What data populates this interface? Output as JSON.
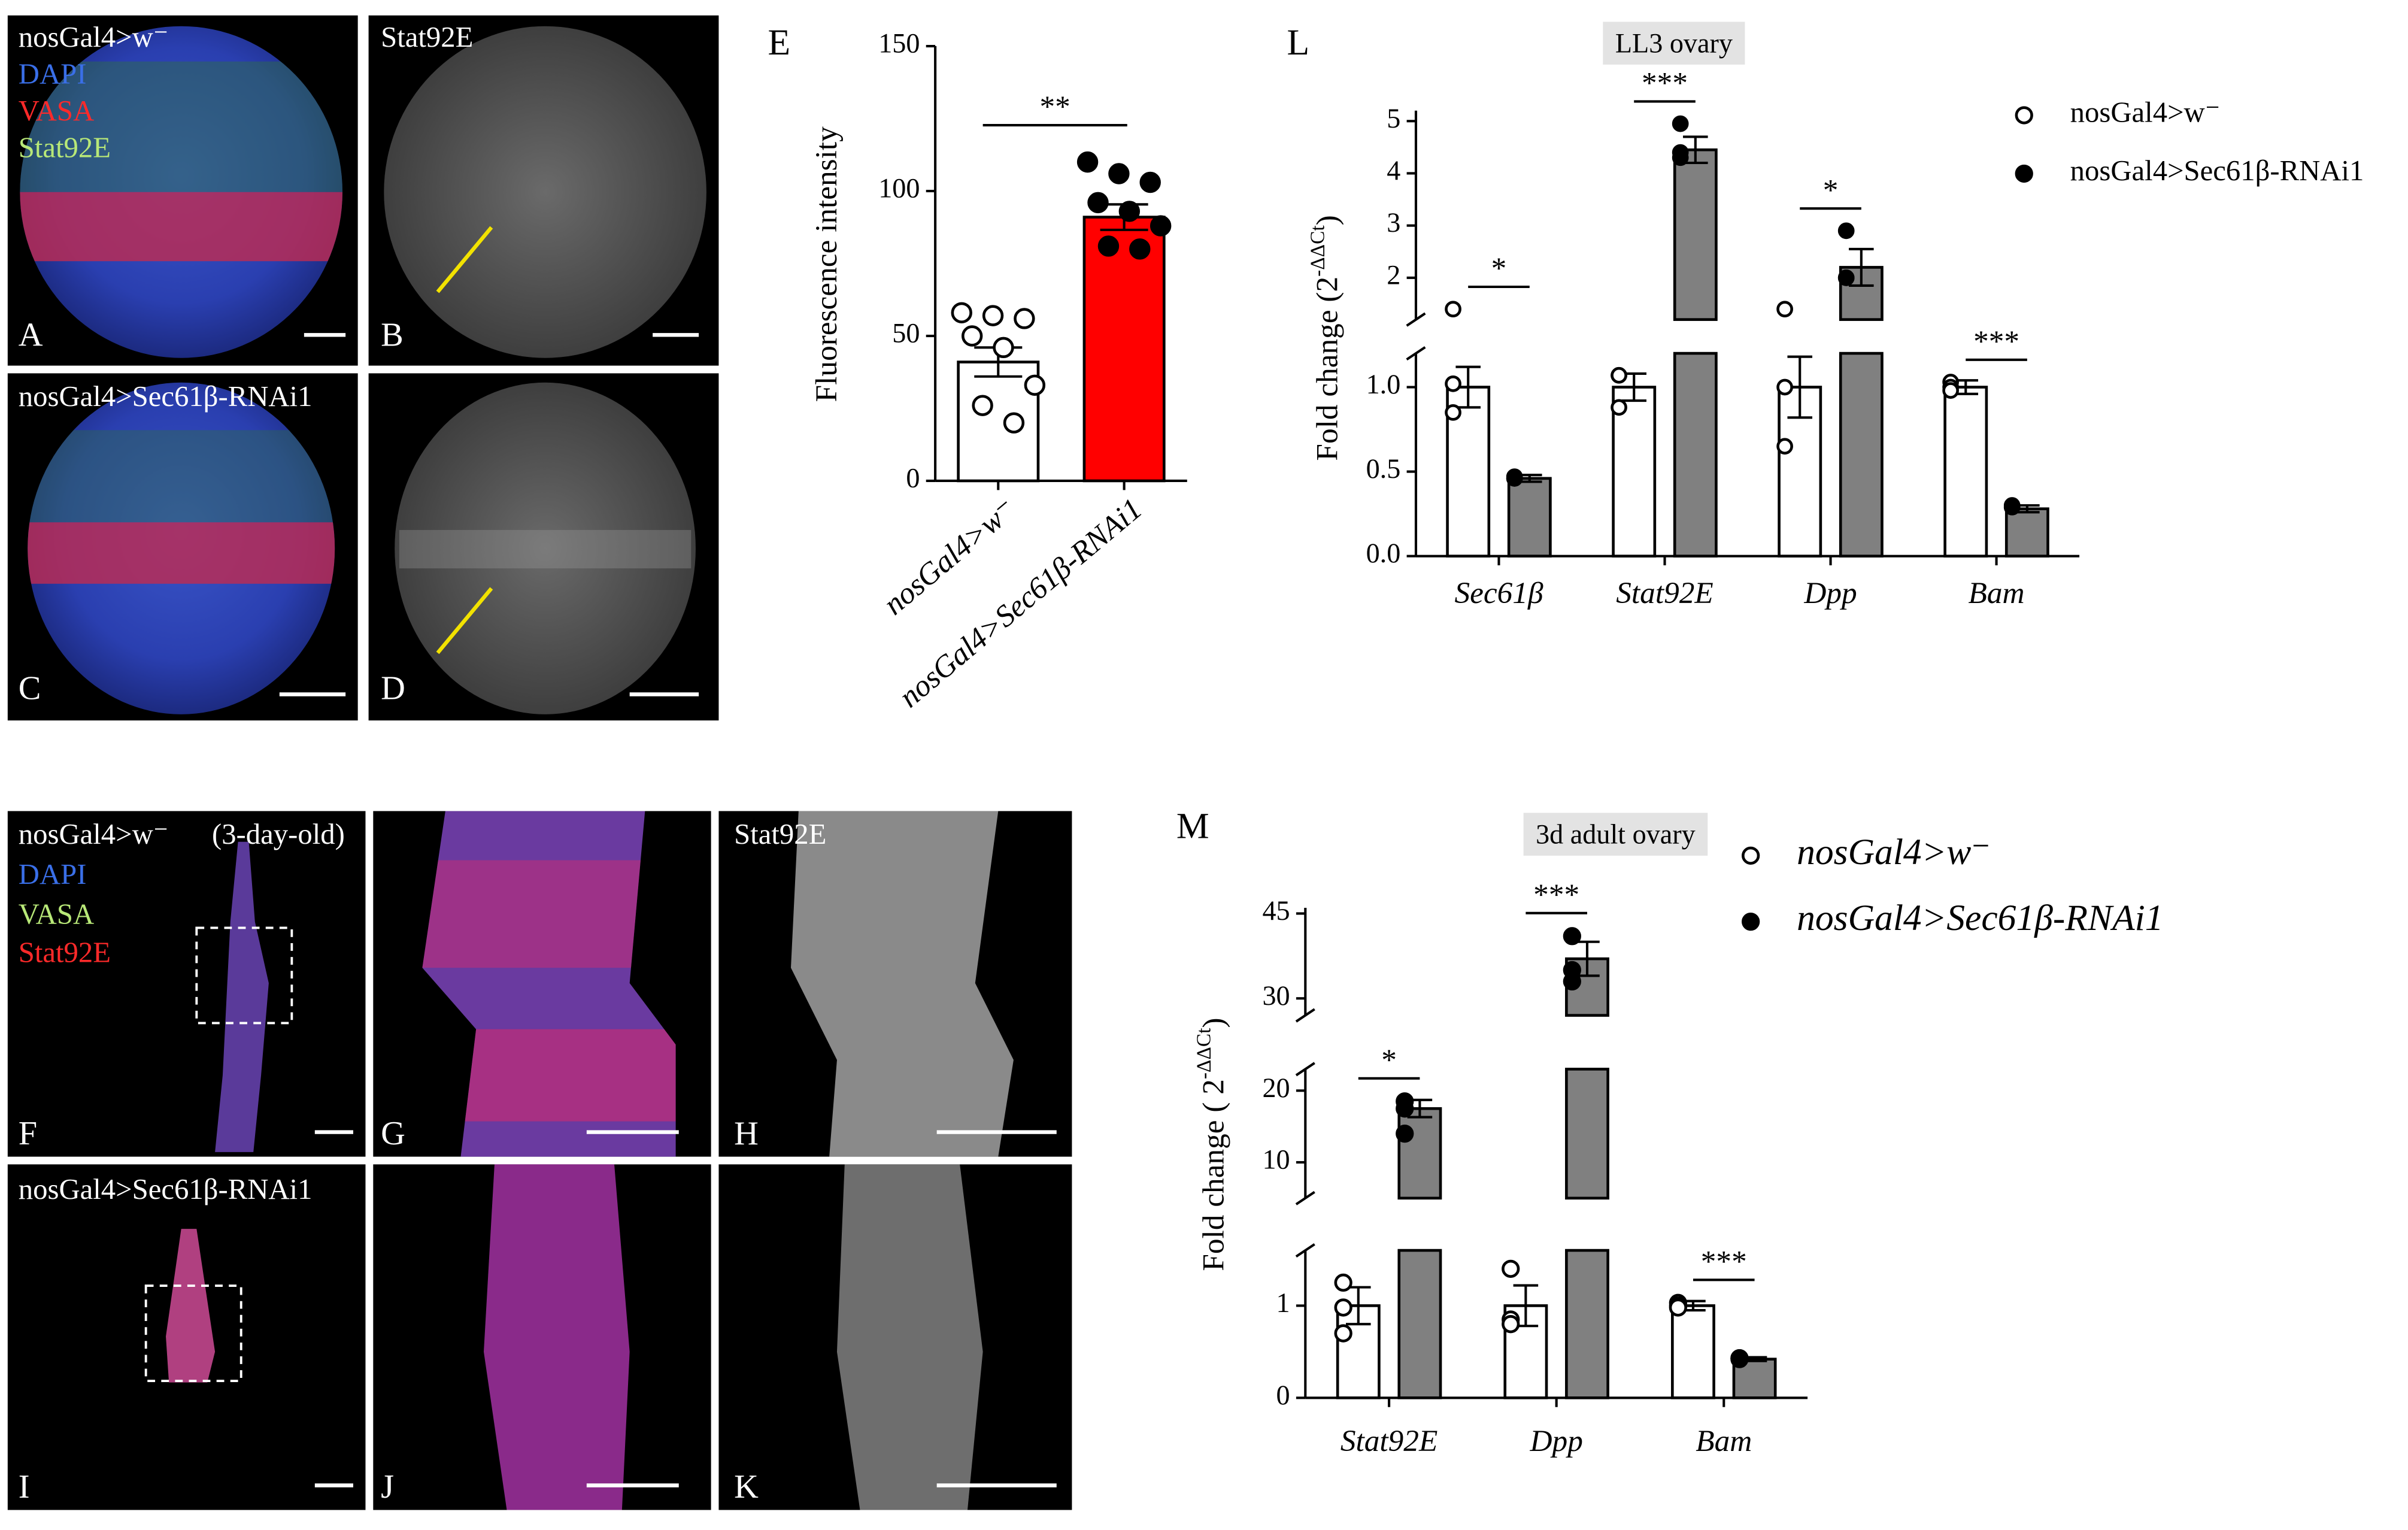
{
  "image_panels": {
    "A": {
      "letter": "A",
      "lines": [
        "nosGal4>w⁻",
        "DAPI",
        "VASA",
        "Stat92E"
      ]
    },
    "B": {
      "letter": "B",
      "lines": [
        "Stat92E"
      ]
    },
    "C": {
      "letter": "C",
      "lines": [
        "nosGal4>Sec61β-RNAi1"
      ]
    },
    "D": {
      "letter": "D"
    },
    "F": {
      "letter": "F",
      "lines": [
        "nosGal4>w⁻",
        "(3-day-old)",
        "DAPI",
        "VASA",
        "Stat92E"
      ]
    },
    "G": {
      "letter": "G"
    },
    "H": {
      "letter": "H",
      "lines": [
        "Stat92E"
      ]
    },
    "I": {
      "letter": "I",
      "lines": [
        "nosGal4>Sec61β-RNAi1"
      ]
    },
    "J": {
      "letter": "J"
    },
    "K": {
      "letter": "K"
    }
  },
  "chart_data": [
    {
      "type": "bar",
      "panel": "E",
      "ylabel": "Fluorescence intensity",
      "categories": [
        "nosGal4>w⁻",
        "nosGal4>Sec61β-RNAi1"
      ],
      "values": [
        41,
        91
      ],
      "errors": [
        5,
        4.4
      ],
      "points": [
        [
          58,
          57,
          56,
          50,
          46,
          33,
          26,
          20
        ],
        [
          110,
          106,
          103,
          96,
          93,
          88,
          81,
          80
        ]
      ],
      "colors": [
        "#ffffff",
        "#ff0000"
      ],
      "point_fills": [
        "#ffffff",
        "#000000"
      ],
      "significance": [
        "**"
      ],
      "ylim": [
        0,
        150
      ],
      "yticks": [
        0,
        50,
        100,
        150
      ]
    },
    {
      "type": "bar",
      "panel": "L",
      "title": "LL3 ovary",
      "ylabel": "Fold change (2",
      "ylabel_sup": "-ΔΔCt",
      "ylabel_end": ")",
      "categories": [
        "Sec61β",
        "Stat92E",
        "Dpp",
        "Bam"
      ],
      "series": [
        {
          "name": "nosGal4>w⁻",
          "color": "#ffffff",
          "point_fill": "#ffffff",
          "values": [
            1.0,
            1.0,
            1.0,
            1.0
          ],
          "errors": [
            0.12,
            0.08,
            0.18,
            0.04
          ],
          "points": [
            [
              1.4,
              1.02,
              0.85
            ],
            [
              1.07,
              1.07,
              0.88
            ],
            [
              1.4,
              1.0,
              0.65
            ],
            [
              1.03,
              1.0,
              0.98
            ]
          ]
        },
        {
          "name": "nosGal4>Sec61β-RNAi1",
          "color": "#808080",
          "point_fill": "#000000",
          "values": [
            0.46,
            4.45,
            2.2,
            0.28
          ],
          "errors": [
            0.02,
            0.25,
            0.35,
            0.02
          ],
          "points": [
            [
              0.46,
              0.46,
              0.47
            ],
            [
              4.95,
              4.4,
              4.3
            ],
            [
              2.9,
              2.0,
              2.0
            ],
            [
              0.29,
              0.29,
              0.3
            ]
          ]
        }
      ],
      "significance": [
        "*",
        "***",
        "*",
        "***"
      ],
      "ylim_segments": [
        [
          0,
          1.2
        ],
        [
          1.2,
          5.2
        ]
      ],
      "yticks": [
        {
          "value": 0,
          "label": "0.0"
        },
        0.5,
        {
          "value": 1,
          "label": "1.0"
        },
        2,
        3,
        4,
        5
      ]
    },
    {
      "type": "bar",
      "panel": "M",
      "title": "3d adult ovary",
      "ylabel": "Fold change ( 2",
      "ylabel_sup": "-ΔΔCt",
      "ylabel_end": ")",
      "categories": [
        "Stat92E",
        "Dpp",
        "Bam"
      ],
      "series": [
        {
          "name": "nosGal4>w⁻",
          "color": "#ffffff",
          "point_fill": "#ffffff",
          "values": [
            1,
            1,
            1
          ],
          "errors": [
            0.2,
            0.22,
            0.05
          ],
          "points": [
            [
              1.25,
              0.98,
              0.7
            ],
            [
              1.4,
              0.85,
              0.8
            ],
            [
              1.03,
              1.0,
              0.98
            ]
          ]
        },
        {
          "name": "nosGal4>Sec61β-RNAi1",
          "color": "#808080",
          "point_fill": "#000000",
          "values": [
            17.5,
            37,
            0.42
          ],
          "errors": [
            1.2,
            3,
            0.02
          ],
          "points": [
            [
              18.5,
              17.5,
              14
            ],
            [
              41,
              35,
              33
            ],
            [
              0.42,
              0.43,
              0.43
            ]
          ]
        }
      ],
      "significance": [
        "*",
        "***",
        "***"
      ],
      "ylim_segments": [
        [
          0,
          1.6
        ],
        [
          5,
          23
        ],
        [
          27,
          46
        ]
      ],
      "yticks": [
        0,
        1,
        10,
        20,
        30,
        45
      ]
    }
  ]
}
